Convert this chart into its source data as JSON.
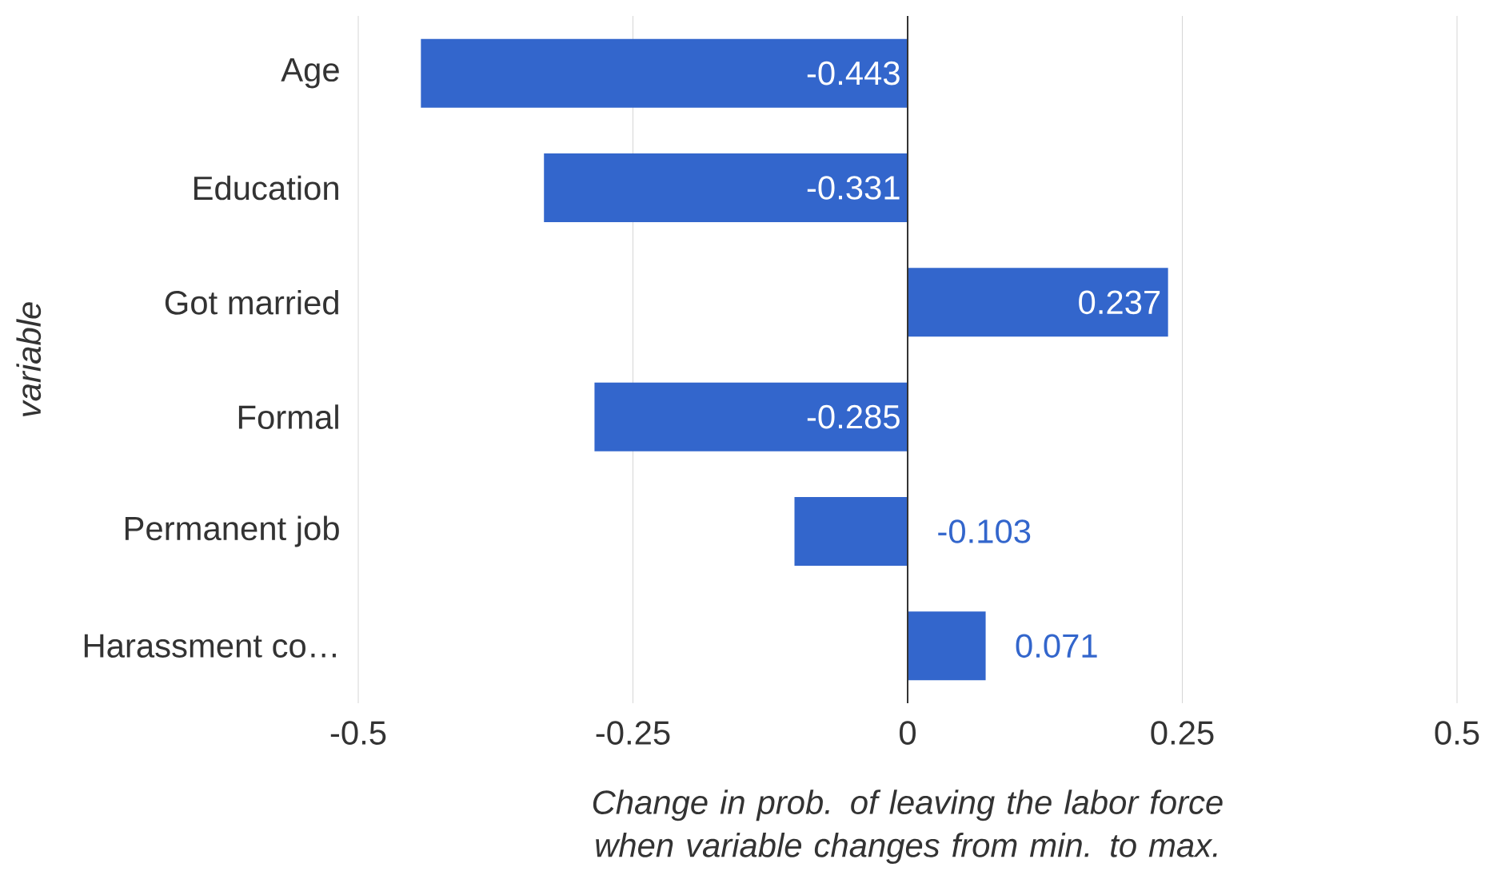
{
  "chart_data": {
    "type": "bar",
    "orientation": "horizontal",
    "xlabel": "Change in prob. of leaving the labor force when variable changes from min. to max.",
    "ylabel": "variable",
    "categories": [
      "Age",
      "Education",
      "Got married",
      "Formal",
      "Permanent job",
      "Harassment co…"
    ],
    "values": [
      -0.443,
      -0.331,
      0.237,
      -0.285,
      -0.103,
      0.071
    ],
    "color": "#3366cc",
    "xlim": [
      -0.5,
      0.5
    ],
    "xticks": [
      -0.5,
      -0.25,
      0,
      0.25,
      0.5
    ],
    "grid": "x",
    "data_labels": true
  }
}
